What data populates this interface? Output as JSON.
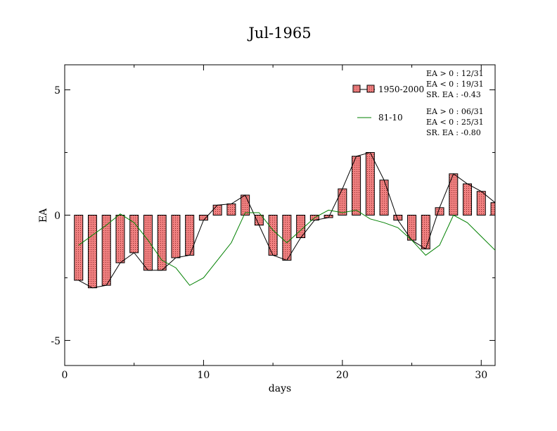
{
  "chart_data": {
    "type": "bar",
    "title": "Jul-1965",
    "xlabel": "days",
    "ylabel": "EA",
    "xlim": [
      0,
      31
    ],
    "ylim": [
      -6,
      6
    ],
    "x_ticks": [
      0,
      10,
      20,
      30
    ],
    "y_ticks": [
      -5,
      0,
      5
    ],
    "x_tick_labels": [
      "0",
      "10",
      "20",
      "30"
    ],
    "y_tick_labels": [
      "-5",
      "0",
      "5"
    ],
    "legend_position": "top-right",
    "colors": {
      "bar_fill": "#f08080",
      "bar_stroke": "#000000",
      "bar_line": "#000000",
      "line": "#008000"
    },
    "x": [
      1,
      2,
      3,
      4,
      5,
      6,
      7,
      8,
      9,
      10,
      11,
      12,
      13,
      14,
      15,
      16,
      17,
      18,
      19,
      20,
      21,
      22,
      23,
      24,
      25,
      26,
      27,
      28,
      29,
      30,
      31
    ],
    "series": [
      {
        "name": "1950-2000",
        "kind": "bar",
        "values": [
          -2.6,
          -2.9,
          -2.8,
          -1.9,
          -1.5,
          -2.2,
          -2.2,
          -1.7,
          -1.6,
          -0.2,
          0.4,
          0.45,
          0.8,
          -0.4,
          -1.6,
          -1.8,
          -0.9,
          -0.2,
          -0.1,
          1.05,
          2.35,
          2.5,
          1.4,
          -0.2,
          -1.0,
          -1.35,
          0.3,
          1.65,
          1.25,
          0.95,
          0.5
        ]
      },
      {
        "name": "81-10",
        "kind": "line",
        "values": [
          -1.2,
          -0.8,
          -0.4,
          0.05,
          -0.3,
          -1.0,
          -1.8,
          -2.1,
          -2.8,
          -2.5,
          -1.8,
          -1.1,
          0.1,
          0.1,
          -0.6,
          -1.1,
          -0.6,
          -0.1,
          0.2,
          0.1,
          0.2,
          -0.15,
          -0.3,
          -0.5,
          -1.0,
          -1.6,
          -1.2,
          0.0,
          -0.3,
          -0.85,
          -1.4
        ]
      }
    ],
    "stats": [
      [
        "EA > 0 : 12/31",
        "EA < 0 : 19/31",
        "SR. EA : -0.43"
      ],
      [
        "EA > 0 : 06/31",
        "EA < 0 : 25/31",
        "SR. EA : -0.80"
      ]
    ]
  }
}
